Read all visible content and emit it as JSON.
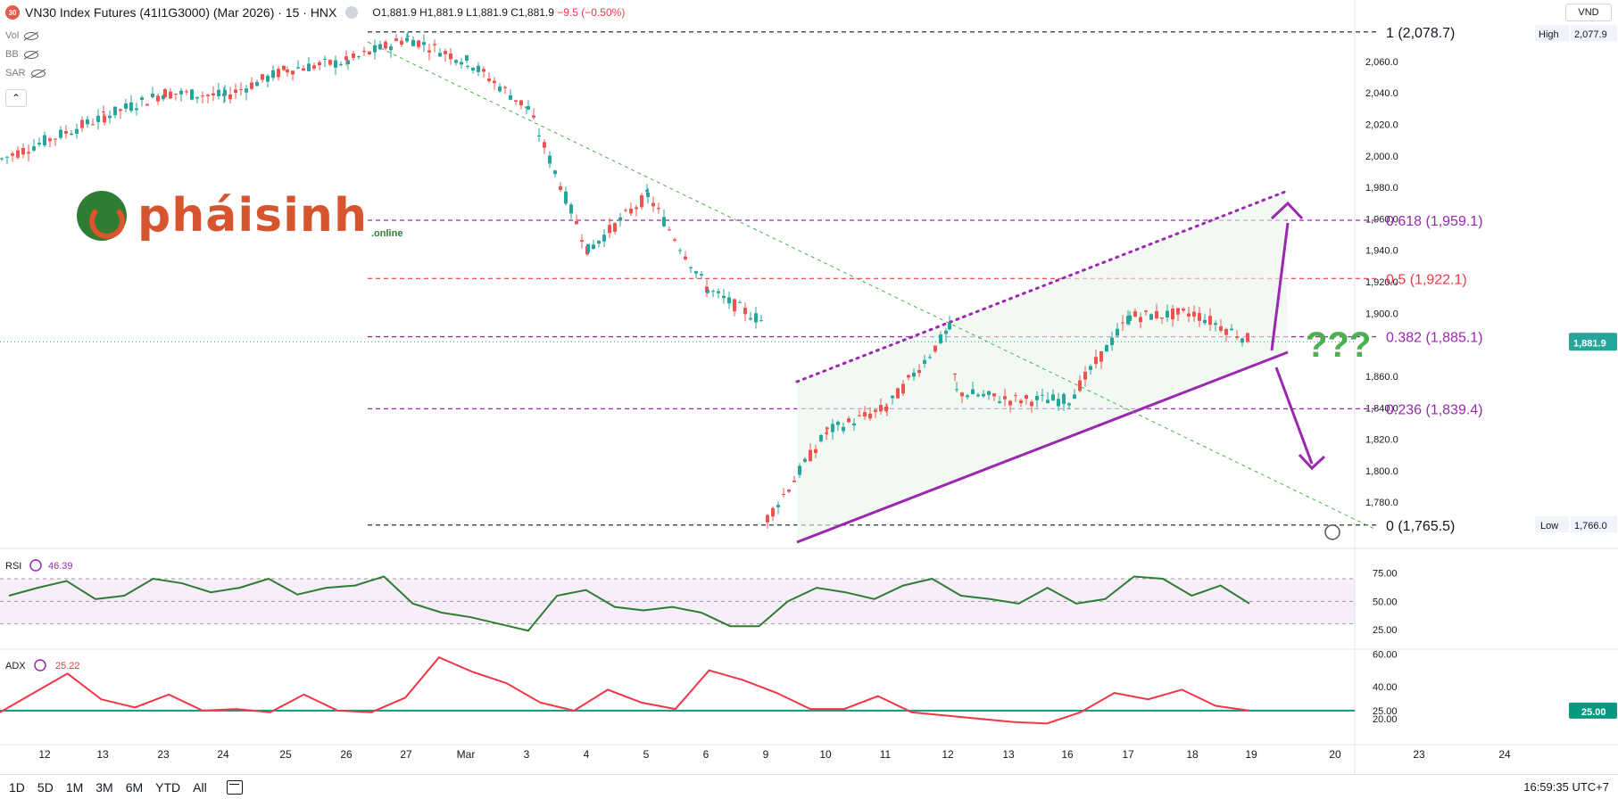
{
  "header": {
    "badge": "30",
    "title": "VN30 Index Futures (41I1G3000) (Mar 2026) · 15 · HNX",
    "open": "O1,881.9",
    "high": "H1,881.9",
    "low": "L1,881.9",
    "close": "C1,881.9",
    "change": "−9.5 (−0.50%)"
  },
  "indicators": [
    "Vol",
    "BB",
    "SAR"
  ],
  "collapse_glyph": "⌃",
  "currency": "VND",
  "logo": {
    "text": "pháisinh",
    "sub": ".online"
  },
  "timeframes": [
    "1D",
    "5D",
    "1M",
    "3M",
    "6M",
    "YTD",
    "All"
  ],
  "clock": "16:59:35 UTC+7",
  "annotation_text": "???",
  "colors": {
    "up": "#26a69a",
    "down": "#ef5350",
    "fib_purple": "#9c27b0",
    "fib_red": "#f23645",
    "channel": "#9c27b0",
    "rsi_line": "#2e7d32",
    "adx_line": "#f23645",
    "adx_level": "#089981",
    "question": "#4caf50"
  },
  "chart_data": [
    {
      "type": "candlestick",
      "title": "VN30 Index Futures (41I1G3000) (Mar 2026) · 15 · HNX",
      "x_ticks": [
        "12",
        "13",
        "23",
        "24",
        "25",
        "26",
        "27",
        "Mar",
        "3",
        "4",
        "5",
        "6",
        "9",
        "10",
        "11",
        "12",
        "13",
        "16",
        "17",
        "18",
        "19",
        "20",
        "23",
        "24"
      ],
      "y_ticks": [
        "2,060.0",
        "2,040.0",
        "2,020.0",
        "2,000.0",
        "1,980.0",
        "1,960.0",
        "1,940.0",
        "1,920.0",
        "1,900.0",
        "1,860.0",
        "1,840.0",
        "1,820.0",
        "1,800.0",
        "1,780.0"
      ],
      "ylim": [
        1762,
        2082
      ],
      "last_price": "1,881.9",
      "high_label": "High",
      "high_value": "2,077.9",
      "low_label": "Low",
      "low_value": "1,766.0",
      "fib_levels": [
        {
          "label": "1 (2,078.7)",
          "value": 2078.7
        },
        {
          "label": "0.618 (1,959.1)",
          "value": 1959.1
        },
        {
          "label": "0.5 (1,922.1)",
          "value": 1922.1
        },
        {
          "label": "0.382 (1,885.1)",
          "value": 1885.1
        },
        {
          "label": "0.236 (1,839.4)",
          "value": 1839.4
        },
        {
          "label": "0 (1,765.5)",
          "value": 1765.5
        }
      ],
      "approx_close_path": [
        {
          "date": "12",
          "close": 1998
        },
        {
          "date": "13",
          "close": 2025
        },
        {
          "date": "23",
          "close": 2040
        },
        {
          "date": "24",
          "close": 2038
        },
        {
          "date": "25",
          "close": 2055
        },
        {
          "date": "26",
          "close": 2060
        },
        {
          "date": "27",
          "close": 2075
        },
        {
          "date": "Mar",
          "close": 2060
        },
        {
          "date": "3",
          "close": 2030
        },
        {
          "date": "4",
          "close": 1940
        },
        {
          "date": "5",
          "close": 1975
        },
        {
          "date": "6",
          "close": 1915
        },
        {
          "date": "9",
          "close": 1895
        },
        {
          "date": "9",
          "close": 1770
        },
        {
          "date": "10",
          "close": 1825
        },
        {
          "date": "11",
          "close": 1840
        },
        {
          "date": "12",
          "close": 1890
        },
        {
          "date": "12",
          "close": 1850
        },
        {
          "date": "13",
          "close": 1845
        },
        {
          "date": "16",
          "close": 1845
        },
        {
          "date": "17",
          "close": 1898
        },
        {
          "date": "18",
          "close": 1900
        },
        {
          "date": "19",
          "close": 1882
        }
      ]
    },
    {
      "type": "line",
      "name": "RSI",
      "value_label": "46.39",
      "y_ticks": [
        "75.00",
        "50.00",
        "25.00"
      ],
      "ylim": [
        10,
        85
      ],
      "band": [
        30,
        70
      ],
      "values": [
        55,
        62,
        68,
        52,
        55,
        70,
        66,
        58,
        62,
        70,
        56,
        62,
        64,
        72,
        48,
        40,
        36,
        30,
        24,
        55,
        60,
        45,
        42,
        45,
        40,
        28,
        28,
        50,
        62,
        58,
        52,
        64,
        70,
        55,
        52,
        48,
        62,
        48,
        52,
        72,
        70,
        55,
        64,
        48
      ]
    },
    {
      "type": "line",
      "name": "ADX",
      "value_label": "25.22",
      "y_ticks": [
        "60.00",
        "40.00",
        "25.00",
        "20.00"
      ],
      "ylim": [
        15,
        62
      ],
      "level": 25,
      "values": [
        24,
        36,
        48,
        32,
        27,
        35,
        25,
        26,
        24,
        35,
        25,
        24,
        33,
        58,
        49,
        42,
        30,
        25,
        38,
        30,
        26,
        50,
        44,
        36,
        26,
        26,
        34,
        24,
        22,
        20,
        18,
        17,
        24,
        36,
        32,
        38,
        28,
        25
      ]
    }
  ]
}
